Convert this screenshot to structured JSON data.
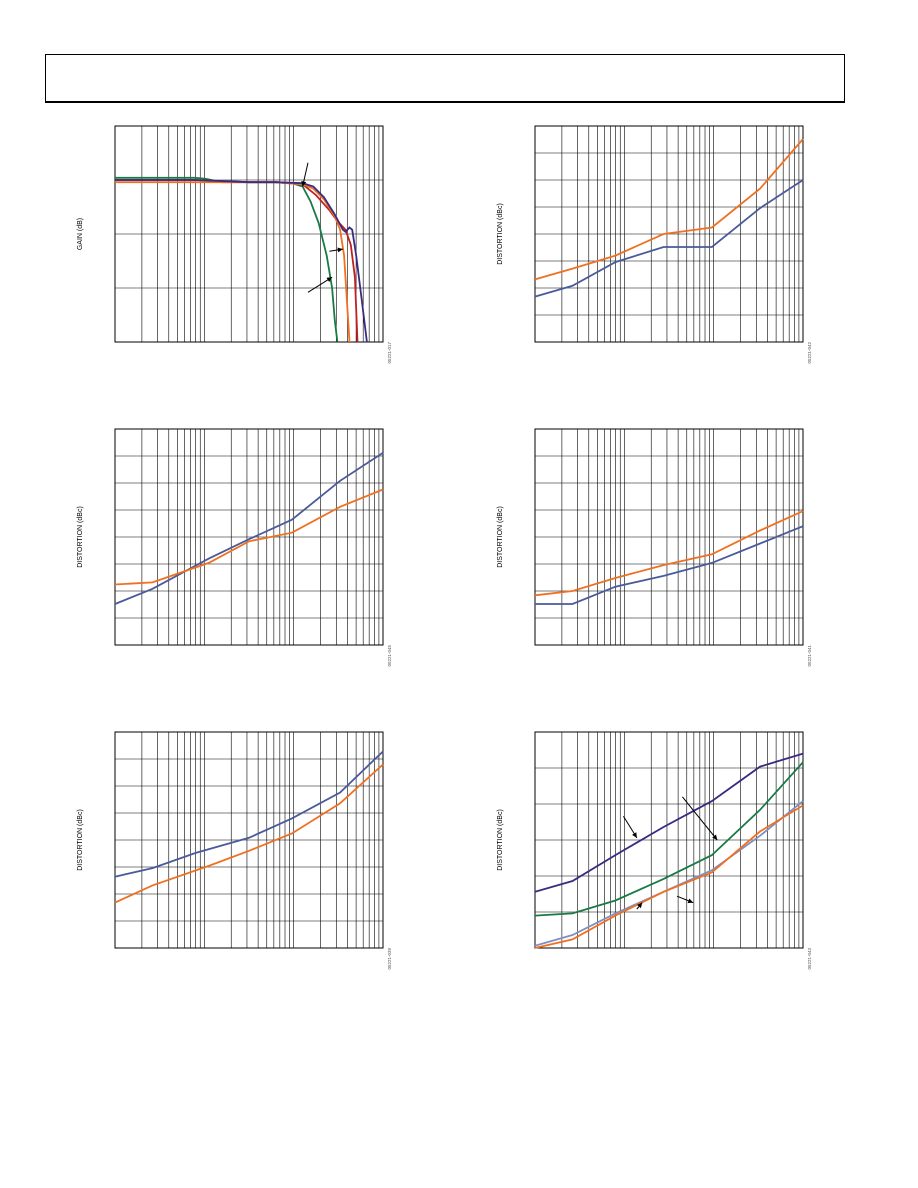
{
  "colors": {
    "blue": "#4a5a9a",
    "orange": "#f07020",
    "green": "#1a7a45",
    "navy": "#3a2a80",
    "red": "#c02020",
    "gray_blue": "#8090c0",
    "grid": "#000000"
  },
  "chart_data": [
    {
      "id": "fig1",
      "type": "line",
      "ylabel": "GAIN (dB)",
      "code": "05221-017",
      "xscale": "log",
      "series": [
        {
          "color": "green",
          "points": [
            [
              0,
              0.24
            ],
            [
              0.3,
              0.24
            ],
            [
              0.34,
              0.245
            ],
            [
              0.4,
              0.26
            ],
            [
              0.5,
              0.26
            ],
            [
              0.6,
              0.26
            ],
            [
              0.66,
              0.265
            ],
            [
              0.7,
              0.28
            ],
            [
              0.73,
              0.35
            ],
            [
              0.76,
              0.45
            ],
            [
              0.79,
              0.6
            ],
            [
              0.81,
              0.75
            ],
            [
              0.82,
              0.9
            ],
            [
              0.83,
              1.0
            ]
          ]
        },
        {
          "color": "red",
          "points": [
            [
              0,
              0.25
            ],
            [
              0.3,
              0.25
            ],
            [
              0.5,
              0.26
            ],
            [
              0.6,
              0.26
            ],
            [
              0.7,
              0.27
            ],
            [
              0.75,
              0.32
            ],
            [
              0.8,
              0.39
            ],
            [
              0.83,
              0.44
            ],
            [
              0.86,
              0.48
            ],
            [
              0.88,
              0.55
            ],
            [
              0.895,
              0.7
            ],
            [
              0.9,
              0.85
            ],
            [
              0.905,
              1.0
            ]
          ]
        },
        {
          "color": "orange",
          "points": [
            [
              0,
              0.26
            ],
            [
              0.3,
              0.26
            ],
            [
              0.5,
              0.26
            ],
            [
              0.6,
              0.26
            ],
            [
              0.7,
              0.27
            ],
            [
              0.74,
              0.29
            ],
            [
              0.78,
              0.34
            ],
            [
              0.82,
              0.42
            ],
            [
              0.84,
              0.48
            ],
            [
              0.855,
              0.6
            ],
            [
              0.865,
              0.8
            ],
            [
              0.875,
              1.0
            ]
          ]
        },
        {
          "color": "navy",
          "points": [
            [
              0,
              0.25
            ],
            [
              0.3,
              0.25
            ],
            [
              0.5,
              0.26
            ],
            [
              0.6,
              0.26
            ],
            [
              0.7,
              0.265
            ],
            [
              0.74,
              0.28
            ],
            [
              0.78,
              0.33
            ],
            [
              0.82,
              0.41
            ],
            [
              0.85,
              0.48
            ],
            [
              0.86,
              0.49
            ],
            [
              0.875,
              0.47
            ],
            [
              0.885,
              0.48
            ],
            [
              0.9,
              0.6
            ],
            [
              0.92,
              0.8
            ],
            [
              0.94,
              1.0
            ]
          ]
        }
      ],
      "arrows": [
        [
          0.72,
          0.17,
          0.7,
          0.28
        ],
        [
          0.8,
          0.58,
          0.85,
          0.57
        ],
        [
          0.72,
          0.77,
          0.81,
          0.7
        ]
      ]
    },
    {
      "id": "fig2",
      "type": "line",
      "ylabel": "DISTORTION (dBc)",
      "code": "05221-042",
      "xscale": "log",
      "series": [
        {
          "color": "blue",
          "points": [
            [
              0,
              0.79
            ],
            [
              0.14,
              0.74
            ],
            [
              0.3,
              0.63
            ],
            [
              0.48,
              0.56
            ],
            [
              0.66,
              0.56
            ],
            [
              0.84,
              0.38
            ],
            [
              1.0,
              0.25
            ]
          ]
        },
        {
          "color": "orange",
          "points": [
            [
              0,
              0.71
            ],
            [
              0.14,
              0.66
            ],
            [
              0.3,
              0.6
            ],
            [
              0.48,
              0.5
            ],
            [
              0.66,
              0.47
            ],
            [
              0.84,
              0.29
            ],
            [
              1.0,
              0.06
            ]
          ]
        }
      ],
      "arrows": []
    },
    {
      "id": "fig3",
      "type": "line",
      "ylabel": "DISTORTION (dBc)",
      "code": "05221-045",
      "xscale": "log",
      "series": [
        {
          "color": "blue",
          "points": [
            [
              0,
              0.81
            ],
            [
              0.14,
              0.74
            ],
            [
              0.35,
              0.6
            ],
            [
              0.5,
              0.51
            ],
            [
              0.66,
              0.42
            ],
            [
              0.84,
              0.24
            ],
            [
              1.0,
              0.11
            ]
          ]
        },
        {
          "color": "orange",
          "points": [
            [
              0,
              0.72
            ],
            [
              0.14,
              0.71
            ],
            [
              0.35,
              0.62
            ],
            [
              0.5,
              0.52
            ],
            [
              0.66,
              0.48
            ],
            [
              0.84,
              0.36
            ],
            [
              1.0,
              0.28
            ]
          ]
        }
      ],
      "arrows": []
    },
    {
      "id": "fig4",
      "type": "line",
      "ylabel": "DISTORTION (dBc)",
      "code": "05221-041",
      "xscale": "log",
      "series": [
        {
          "color": "blue",
          "points": [
            [
              0,
              0.81
            ],
            [
              0.14,
              0.81
            ],
            [
              0.3,
              0.73
            ],
            [
              0.48,
              0.68
            ],
            [
              0.66,
              0.62
            ],
            [
              0.84,
              0.53
            ],
            [
              1.0,
              0.45
            ]
          ]
        },
        {
          "color": "orange",
          "points": [
            [
              0,
              0.77
            ],
            [
              0.14,
              0.75
            ],
            [
              0.3,
              0.69
            ],
            [
              0.48,
              0.63
            ],
            [
              0.66,
              0.58
            ],
            [
              0.84,
              0.47
            ],
            [
              1.0,
              0.38
            ]
          ]
        }
      ],
      "arrows": []
    },
    {
      "id": "fig5",
      "type": "line",
      "ylabel": "DISTORTION (dBc)",
      "code": "05221-039",
      "xscale": "log",
      "series": [
        {
          "color": "blue",
          "points": [
            [
              0,
              0.67
            ],
            [
              0.14,
              0.63
            ],
            [
              0.3,
              0.56
            ],
            [
              0.5,
              0.49
            ],
            [
              0.66,
              0.4
            ],
            [
              0.84,
              0.28
            ],
            [
              1.0,
              0.09
            ]
          ]
        },
        {
          "color": "orange",
          "points": [
            [
              0,
              0.79
            ],
            [
              0.14,
              0.71
            ],
            [
              0.35,
              0.62
            ],
            [
              0.5,
              0.55
            ],
            [
              0.66,
              0.47
            ],
            [
              0.84,
              0.33
            ],
            [
              1.0,
              0.15
            ]
          ]
        }
      ],
      "arrows": []
    },
    {
      "id": "fig6",
      "type": "line",
      "ylabel": "DISTORTION (dBc)",
      "code": "05221-043",
      "xscale": "log",
      "series": [
        {
          "color": "navy",
          "points": [
            [
              0,
              0.74
            ],
            [
              0.14,
              0.69
            ],
            [
              0.3,
              0.57
            ],
            [
              0.48,
              0.44
            ],
            [
              0.66,
              0.32
            ],
            [
              0.84,
              0.16
            ],
            [
              1.0,
              0.1
            ]
          ]
        },
        {
          "color": "green",
          "points": [
            [
              0,
              0.85
            ],
            [
              0.14,
              0.84
            ],
            [
              0.3,
              0.78
            ],
            [
              0.48,
              0.68
            ],
            [
              0.66,
              0.57
            ],
            [
              0.84,
              0.36
            ],
            [
              1.0,
              0.14
            ]
          ]
        },
        {
          "color": "gray_blue",
          "points": [
            [
              0,
              0.99
            ],
            [
              0.14,
              0.94
            ],
            [
              0.3,
              0.84
            ],
            [
              0.48,
              0.74
            ],
            [
              0.66,
              0.64
            ],
            [
              0.84,
              0.48
            ],
            [
              1.0,
              0.32
            ]
          ]
        },
        {
          "color": "orange",
          "points": [
            [
              0,
              1.0
            ],
            [
              0.14,
              0.96
            ],
            [
              0.3,
              0.85
            ],
            [
              0.48,
              0.74
            ],
            [
              0.66,
              0.65
            ],
            [
              0.84,
              0.46
            ],
            [
              1.0,
              0.34
            ]
          ]
        }
      ],
      "arrows": [
        [
          0.55,
          0.3,
          0.68,
          0.5
        ],
        [
          0.33,
          0.39,
          0.38,
          0.49
        ],
        [
          0.53,
          0.76,
          0.59,
          0.79
        ],
        [
          0.38,
          0.82,
          0.4,
          0.79
        ]
      ]
    }
  ]
}
